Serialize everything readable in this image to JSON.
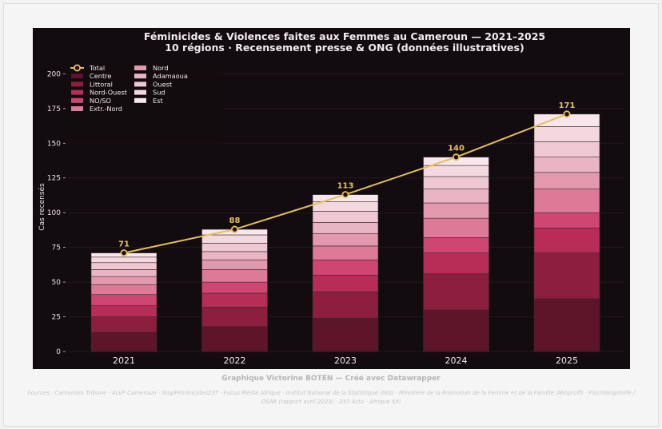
{
  "chart_data": {
    "type": "bar",
    "stacked": true,
    "title": "Féminicides & Violences faites aux Femmes au Cameroun — 2021–2025",
    "subtitle": "10 régions · Recensement presse & ONG (données illustratives)",
    "xlabel": "",
    "ylabel": "Cas recensés",
    "ylim": [
      0,
      210
    ],
    "yticks": [
      "0",
      "25",
      "50",
      "75",
      "100",
      "125",
      "150",
      "175",
      "200"
    ],
    "categories": [
      "2021",
      "2022",
      "2023",
      "2024",
      "2025"
    ],
    "grid": true,
    "legend_position": "top-left",
    "series": [
      {
        "name": "Centre",
        "color": "#5e1429",
        "values": [
          14,
          18,
          24,
          30,
          38
        ]
      },
      {
        "name": "Littoral",
        "color": "#8c1e3e",
        "values": [
          11,
          14,
          19,
          26,
          33
        ]
      },
      {
        "name": "Nord-Ouest",
        "color": "#b72d57",
        "values": [
          8,
          10,
          12,
          15,
          18
        ]
      },
      {
        "name": "NO/SO",
        "color": "#d04672",
        "values": [
          8,
          8,
          11,
          11,
          11
        ]
      },
      {
        "name": "Extr.-Nord",
        "color": "#dc7a97",
        "values": [
          7,
          9,
          10,
          14,
          17
        ]
      },
      {
        "name": "Nord",
        "color": "#e399ad",
        "values": [
          6,
          7,
          9,
          11,
          12
        ]
      },
      {
        "name": "Adamaoua",
        "color": "#e9b4c3",
        "values": [
          5,
          6,
          8,
          10,
          11
        ]
      },
      {
        "name": "Ouest",
        "color": "#efc8d3",
        "values": [
          5,
          6,
          8,
          9,
          11
        ]
      },
      {
        "name": "Sud",
        "color": "#f3d8df",
        "values": [
          4,
          6,
          7,
          8,
          11
        ]
      },
      {
        "name": "Est",
        "color": "#f7e6eb",
        "values": [
          3,
          4,
          5,
          6,
          9
        ]
      }
    ],
    "line": {
      "name": "Total",
      "color": "#e5bf55",
      "values": [
        71,
        88,
        113,
        140,
        171
      ]
    }
  },
  "footer": {
    "credit": "Graphique Victorine BOTEN — Créé avec Datawrapper",
    "sources": "Sources : Cameroon Tribune · ALVF Cameroun · StopFéminicides237 · Focus Média Afrique · Institut National de la Statistique (INS) · Ministère de la Promotion de la Femme et de la Famille (Minproff) · Flüchtlingshilfe / OSAR (rapport avril 2023) · 237 Actu · Afrique XXI"
  }
}
